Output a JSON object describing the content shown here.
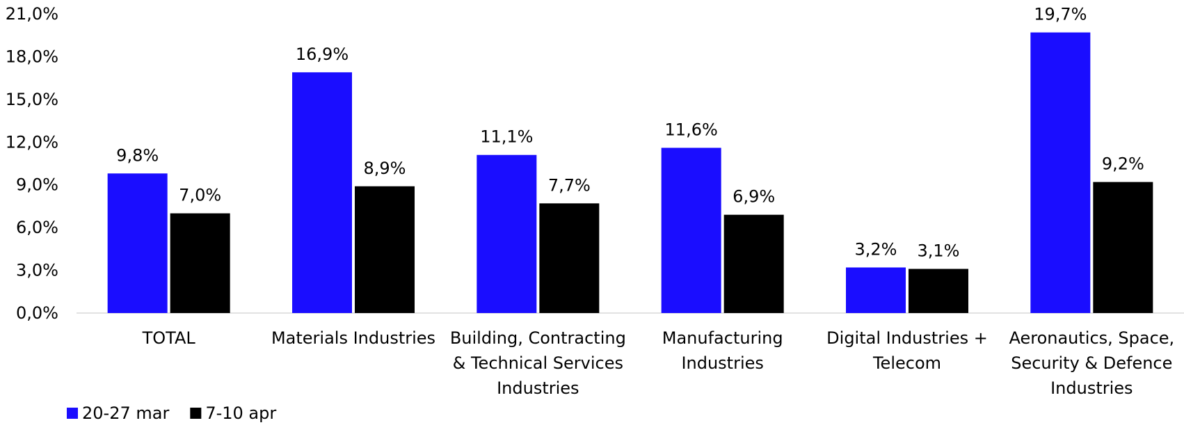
{
  "chart_data": {
    "type": "bar",
    "title": "",
    "xlabel": "",
    "ylabel": "",
    "ylim": [
      0,
      21
    ],
    "yticks": [
      "0,0%",
      "3,0%",
      "6,0%",
      "9,0%",
      "12,0%",
      "15,0%",
      "18,0%",
      "21,0%"
    ],
    "categories": [
      [
        "TOTAL"
      ],
      [
        "Materials Industries"
      ],
      [
        "Building, Contracting",
        "& Technical Services",
        "Industries"
      ],
      [
        "Manufacturing",
        "Industries"
      ],
      [
        "Digital Industries +",
        "Telecom"
      ],
      [
        "Aeronautics, Space,",
        "Security & Defence",
        "Industries"
      ]
    ],
    "series": [
      {
        "name": "20-27 mar",
        "color": "#1a0dff",
        "values": [
          9.8,
          16.9,
          11.1,
          11.6,
          3.2,
          19.7
        ],
        "labels": [
          "9,8%",
          "16,9%",
          "11,1%",
          "11,6%",
          "3,2%",
          "19,7%"
        ]
      },
      {
        "name": "7-10 apr",
        "color": "#000000",
        "values": [
          7.0,
          8.9,
          7.7,
          6.9,
          3.1,
          9.2
        ],
        "labels": [
          "7,0%",
          "8,9%",
          "7,7%",
          "6,9%",
          "3,1%",
          "9,2%"
        ]
      }
    ],
    "grid": false,
    "legend": "bottom-left"
  }
}
